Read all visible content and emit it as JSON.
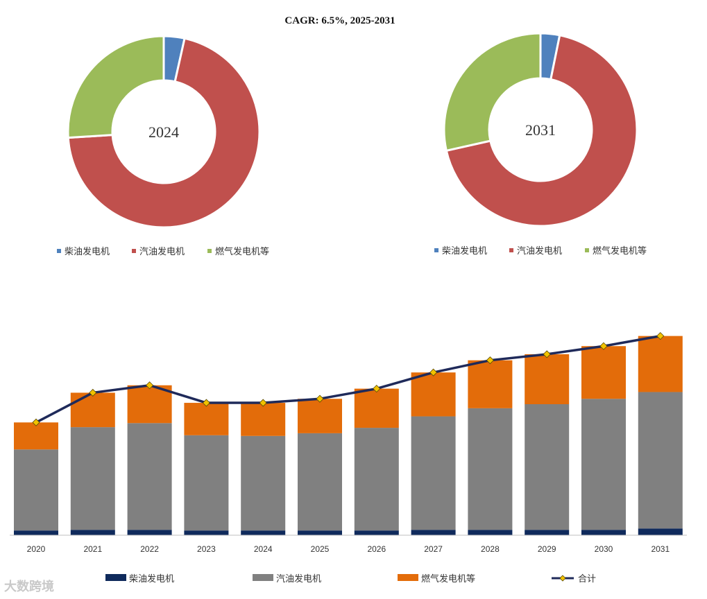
{
  "title": "CAGR: 6.5%, 2025-2031",
  "watermark": "大数跨境",
  "colors": {
    "pie_diesel": "#4f81bd",
    "pie_gasoline": "#c0504d",
    "pie_gas": "#9bbb59",
    "bar_diesel": "#0f2a5c",
    "bar_gasoline": "#808080",
    "bar_gas": "#e36c0a",
    "line_total": "#1f2a5a",
    "marker_total": "#f2c200"
  },
  "chart_data": [
    {
      "type": "pie",
      "variant": "donut",
      "center_label": "2024",
      "labels": [
        "柴油发电机",
        "汽油发电机",
        "燃气发电机等"
      ],
      "values": [
        3.5,
        70.5,
        26.0
      ],
      "legend_position": "bottom"
    },
    {
      "type": "pie",
      "variant": "donut",
      "center_label": "2031",
      "labels": [
        "柴油发电机",
        "汽油发电机",
        "燃气发电机等"
      ],
      "values": [
        3.2,
        68.3,
        28.5
      ],
      "legend_position": "bottom"
    },
    {
      "type": "bar",
      "stacked": true,
      "categories": [
        "2020",
        "2021",
        "2022",
        "2023",
        "2024",
        "2025",
        "2026",
        "2027",
        "2028",
        "2029",
        "2030",
        "2031"
      ],
      "series": [
        {
          "name": "柴油发电机",
          "kind": "bar",
          "values": [
            7,
            8,
            8,
            7,
            7,
            7,
            7,
            8,
            8,
            8,
            8,
            10
          ]
        },
        {
          "name": "汽油发电机",
          "kind": "bar",
          "values": [
            120,
            152,
            158,
            141,
            140,
            144,
            152,
            168,
            180,
            186,
            194,
            202
          ]
        },
        {
          "name": "燃气发电机等",
          "kind": "bar",
          "values": [
            40,
            51,
            56,
            48,
            49,
            51,
            58,
            65,
            71,
            74,
            78,
            83
          ]
        },
        {
          "name": "合计",
          "kind": "line",
          "values": [
            167,
            211,
            222,
            196,
            196,
            202,
            217,
            241,
            259,
            268,
            280,
            295
          ]
        }
      ],
      "ylim": [
        0,
        310
      ],
      "grid": false,
      "legend_position": "bottom"
    }
  ]
}
